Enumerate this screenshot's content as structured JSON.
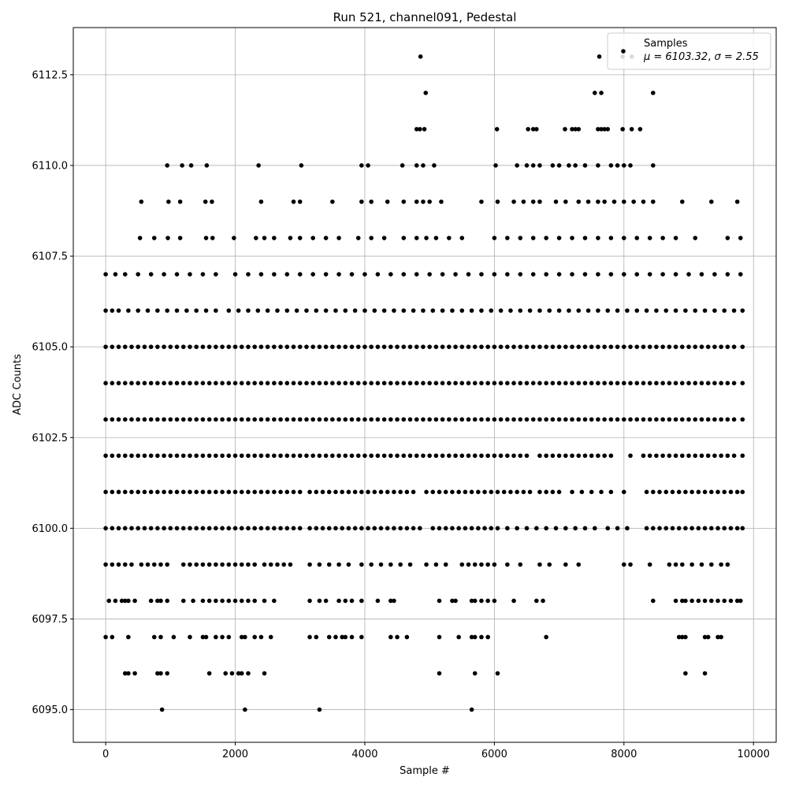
{
  "chart_data": {
    "type": "scatter",
    "title": "Run 521, channel091, Pedestal",
    "xlabel": "Sample #",
    "ylabel": "ADC Counts",
    "xlim": [
      -500,
      10350
    ],
    "ylim": [
      6094.1,
      6113.8
    ],
    "xticks": [
      0,
      2000,
      4000,
      6000,
      8000,
      10000
    ],
    "xtick_labels": [
      "0",
      "2000",
      "4000",
      "6000",
      "8000",
      "10000"
    ],
    "yticks": [
      6095.0,
      6097.5,
      6100.0,
      6102.5,
      6105.0,
      6107.5,
      6110.0,
      6112.5
    ],
    "ytick_labels": [
      "6095.0",
      "6097.5",
      "6100.0",
      "6102.5",
      "6105.0",
      "6107.5",
      "6110.0",
      "6112.5"
    ],
    "grid": true,
    "legend": {
      "placement": "top-right",
      "series_name": "Samples",
      "stat_mu_label": "μ = 6103.32",
      "stat_sigma_label": "σ = 2.55"
    },
    "marker_color": "#000000",
    "levels": [
      {
        "y": 6113,
        "x": [
          4860,
          7620,
          7980,
          8120
        ]
      },
      {
        "y": 6112,
        "x": [
          4940,
          7550,
          7650,
          8450
        ]
      },
      {
        "y": 6111,
        "x": [
          4800,
          4850,
          4920,
          6040,
          6520,
          6600,
          6650,
          7090,
          7200,
          7250,
          7300,
          7600,
          7650,
          7700,
          7750,
          7980,
          8120,
          8250
        ]
      },
      {
        "y": 6110,
        "x": [
          950,
          1180,
          1320,
          1560,
          2360,
          3020,
          3950,
          4050,
          4580,
          4800,
          4900,
          5070,
          6020,
          6350,
          6500,
          6600,
          6700,
          6900,
          7000,
          7150,
          7250,
          7400,
          7600,
          7800,
          7900,
          8000,
          8100,
          8450
        ]
      },
      {
        "y": 6109,
        "x": [
          550,
          970,
          1150,
          1540,
          1640,
          2400,
          2900,
          3000,
          3500,
          3950,
          4100,
          4350,
          4600,
          4800,
          4900,
          5000,
          5180,
          5800,
          6050,
          6300,
          6450,
          6600,
          6700,
          6950,
          7100,
          7300,
          7450,
          7600,
          7700,
          7850,
          8000,
          8150,
          8300,
          8450,
          8900,
          9350,
          9750
        ]
      },
      {
        "y": 6108,
        "x": [
          530,
          750,
          960,
          1150,
          1550,
          1650,
          1980,
          2320,
          2450,
          2600,
          2850,
          3000,
          3200,
          3400,
          3600,
          3900,
          4100,
          4300,
          4600,
          4800,
          4950,
          5100,
          5300,
          5500,
          6000,
          6200,
          6400,
          6600,
          6800,
          7000,
          7200,
          7400,
          7600,
          7800,
          8000,
          8200,
          8400,
          8600,
          8800,
          9100,
          9600,
          9800
        ]
      },
      {
        "y": 6107,
        "x": [
          0,
          150,
          300,
          500,
          700,
          900,
          1100,
          1300,
          1500,
          1700,
          2000,
          2200,
          2400,
          2600,
          2800,
          3000,
          3200,
          3400,
          3600,
          3800,
          4000,
          4200,
          4400,
          4600,
          4800,
          5000,
          5200,
          5400,
          5600,
          5800,
          6000,
          6200,
          6400,
          6600,
          6800,
          7000,
          7200,
          7400,
          7600,
          7800,
          8000,
          8200,
          8400,
          8600,
          8800,
          9000,
          9200,
          9400,
          9600,
          9800
        ]
      },
      {
        "y": 6106,
        "x": [
          0,
          100,
          200,
          350,
          500,
          650,
          800,
          950,
          1100,
          1250,
          1400,
          1550,
          1700,
          1900,
          2050,
          2200,
          2350,
          2500,
          2650,
          2800,
          2950,
          3100,
          3250,
          3400,
          3550,
          3700,
          3850,
          4000,
          4150,
          4300,
          4450,
          4600,
          4750,
          4900,
          5050,
          5200,
          5350,
          5500,
          5650,
          5800,
          5950,
          6100,
          6250,
          6400,
          6550,
          6700,
          6850,
          7000,
          7150,
          7300,
          7450,
          7600,
          7750,
          7900,
          8050,
          8200,
          8350,
          8500,
          8650,
          8800,
          8950,
          9100,
          9250,
          9400,
          9550,
          9700,
          9830
        ]
      },
      {
        "y": 6105,
        "x": [
          0,
          100,
          200,
          300,
          400,
          500,
          600,
          700,
          800,
          900,
          1000,
          1100,
          1200,
          1300,
          1400,
          1500,
          1600,
          1700,
          1800,
          1900,
          2000,
          2100,
          2200,
          2300,
          2400,
          2500,
          2600,
          2700,
          2800,
          2900,
          3000,
          3100,
          3200,
          3300,
          3400,
          3500,
          3600,
          3700,
          3800,
          3900,
          4000,
          4100,
          4200,
          4300,
          4400,
          4500,
          4600,
          4700,
          4800,
          4900,
          5000,
          5100,
          5200,
          5300,
          5400,
          5500,
          5600,
          5700,
          5800,
          5900,
          6000,
          6100,
          6200,
          6300,
          6400,
          6500,
          6600,
          6700,
          6800,
          6900,
          7000,
          7100,
          7200,
          7300,
          7400,
          7500,
          7600,
          7700,
          7800,
          7900,
          8000,
          8100,
          8200,
          8300,
          8400,
          8500,
          8600,
          8700,
          8800,
          8900,
          9000,
          9100,
          9200,
          9300,
          9400,
          9500,
          9600,
          9700,
          9830
        ]
      },
      {
        "y": 6104,
        "x": [
          0,
          100,
          200,
          300,
          400,
          500,
          600,
          700,
          800,
          900,
          1000,
          1100,
          1200,
          1300,
          1400,
          1500,
          1600,
          1700,
          1800,
          1900,
          2000,
          2100,
          2200,
          2300,
          2400,
          2500,
          2600,
          2700,
          2800,
          2900,
          3000,
          3100,
          3200,
          3300,
          3400,
          3500,
          3600,
          3700,
          3800,
          3900,
          4000,
          4100,
          4200,
          4300,
          4400,
          4500,
          4600,
          4700,
          4800,
          4900,
          5000,
          5100,
          5200,
          5300,
          5400,
          5500,
          5600,
          5700,
          5800,
          5900,
          6000,
          6100,
          6200,
          6300,
          6400,
          6500,
          6600,
          6700,
          6800,
          6900,
          7000,
          7100,
          7200,
          7300,
          7400,
          7500,
          7600,
          7700,
          7800,
          7900,
          8000,
          8100,
          8200,
          8300,
          8400,
          8500,
          8600,
          8700,
          8800,
          8900,
          9000,
          9100,
          9200,
          9300,
          9400,
          9500,
          9600,
          9700,
          9830
        ]
      },
      {
        "y": 6103,
        "x": [
          0,
          100,
          200,
          300,
          400,
          500,
          600,
          700,
          800,
          900,
          1000,
          1100,
          1200,
          1300,
          1400,
          1500,
          1600,
          1700,
          1800,
          1900,
          2000,
          2100,
          2200,
          2300,
          2400,
          2500,
          2600,
          2700,
          2800,
          2900,
          3000,
          3100,
          3200,
          3300,
          3400,
          3500,
          3600,
          3700,
          3800,
          3900,
          4000,
          4100,
          4200,
          4300,
          4400,
          4500,
          4600,
          4700,
          4800,
          4900,
          5000,
          5100,
          5200,
          5300,
          5400,
          5500,
          5600,
          5700,
          5800,
          5900,
          6000,
          6100,
          6200,
          6300,
          6400,
          6500,
          6600,
          6700,
          6800,
          6900,
          7000,
          7100,
          7200,
          7300,
          7400,
          7500,
          7600,
          7700,
          7800,
          7900,
          8000,
          8100,
          8200,
          8300,
          8400,
          8500,
          8600,
          8700,
          8800,
          8900,
          9000,
          9100,
          9200,
          9300,
          9400,
          9500,
          9600,
          9700,
          9830
        ]
      },
      {
        "y": 6102,
        "x": [
          0,
          100,
          200,
          300,
          400,
          500,
          600,
          700,
          800,
          900,
          1000,
          1100,
          1200,
          1300,
          1400,
          1500,
          1600,
          1700,
          1800,
          1900,
          2000,
          2100,
          2200,
          2300,
          2400,
          2500,
          2600,
          2700,
          2800,
          2900,
          3000,
          3100,
          3200,
          3300,
          3400,
          3500,
          3600,
          3700,
          3800,
          3900,
          4000,
          4100,
          4200,
          4300,
          4400,
          4500,
          4600,
          4700,
          4800,
          4900,
          5000,
          5100,
          5200,
          5300,
          5400,
          5500,
          5600,
          5700,
          5800,
          5900,
          6000,
          6100,
          6200,
          6300,
          6400,
          6500,
          6700,
          6800,
          6900,
          7000,
          7100,
          7200,
          7300,
          7400,
          7500,
          7600,
          7700,
          7800,
          8100,
          8300,
          8400,
          8500,
          8600,
          8700,
          8800,
          8900,
          9000,
          9100,
          9200,
          9300,
          9400,
          9500,
          9600,
          9700,
          9830
        ]
      },
      {
        "y": 6101,
        "x": [
          0,
          100,
          200,
          300,
          400,
          500,
          600,
          700,
          800,
          900,
          1000,
          1100,
          1200,
          1300,
          1400,
          1500,
          1600,
          1700,
          1800,
          1900,
          2000,
          2100,
          2200,
          2300,
          2400,
          2500,
          2600,
          2700,
          2800,
          2900,
          3000,
          3150,
          3250,
          3350,
          3450,
          3550,
          3650,
          3750,
          3850,
          3950,
          4050,
          4150,
          4250,
          4350,
          4450,
          4550,
          4650,
          4750,
          4950,
          5050,
          5150,
          5250,
          5350,
          5450,
          5550,
          5650,
          5750,
          5850,
          5950,
          6050,
          6150,
          6250,
          6350,
          6450,
          6550,
          6700,
          6800,
          6900,
          7000,
          7200,
          7350,
          7500,
          7650,
          7800,
          8000,
          8350,
          8450,
          8550,
          8650,
          8750,
          8850,
          8950,
          9050,
          9150,
          9250,
          9350,
          9450,
          9550,
          9650,
          9750,
          9830
        ]
      },
      {
        "y": 6100,
        "x": [
          0,
          100,
          200,
          300,
          400,
          500,
          600,
          700,
          800,
          900,
          1000,
          1100,
          1200,
          1300,
          1400,
          1500,
          1600,
          1700,
          1800,
          1900,
          2000,
          2100,
          2200,
          2300,
          2400,
          2500,
          2600,
          2700,
          2800,
          2900,
          3000,
          3150,
          3250,
          3350,
          3450,
          3550,
          3650,
          3750,
          3850,
          3950,
          4050,
          4150,
          4250,
          4350,
          4450,
          4550,
          4650,
          4750,
          4850,
          5050,
          5150,
          5250,
          5350,
          5450,
          5550,
          5650,
          5750,
          5850,
          5950,
          6050,
          6200,
          6350,
          6500,
          6650,
          6800,
          6950,
          7100,
          7250,
          7400,
          7550,
          7750,
          7900,
          8050,
          8350,
          8450,
          8550,
          8650,
          8750,
          8850,
          8950,
          9050,
          9150,
          9250,
          9350,
          9450,
          9550,
          9650,
          9750,
          9830
        ]
      },
      {
        "y": 6099,
        "x": [
          0,
          100,
          200,
          300,
          400,
          550,
          650,
          750,
          850,
          950,
          1200,
          1300,
          1400,
          1500,
          1600,
          1700,
          1800,
          1900,
          2000,
          2100,
          2200,
          2300,
          2450,
          2550,
          2650,
          2750,
          2850,
          3150,
          3300,
          3450,
          3600,
          3750,
          3950,
          4100,
          4250,
          4400,
          4550,
          4700,
          4950,
          5100,
          5250,
          5500,
          5600,
          5700,
          5800,
          5900,
          6000,
          6200,
          6400,
          6700,
          6850,
          7100,
          7300,
          8000,
          8100,
          8400,
          8700,
          8800,
          8900,
          9050,
          9200,
          9350,
          9500,
          9600
        ]
      },
      {
        "y": 6098,
        "x": [
          50,
          150,
          250,
          300,
          350,
          450,
          700,
          800,
          850,
          950,
          1200,
          1350,
          1500,
          1600,
          1700,
          1800,
          1900,
          2000,
          2100,
          2200,
          2300,
          2450,
          2600,
          3150,
          3300,
          3400,
          3600,
          3700,
          3800,
          3950,
          4200,
          4400,
          4450,
          5150,
          5350,
          5400,
          5650,
          5700,
          5800,
          5900,
          6000,
          6300,
          6650,
          6750,
          8450,
          8800,
          8900,
          8950,
          9050,
          9150,
          9250,
          9350,
          9450,
          9550,
          9650,
          9750,
          9800
        ]
      },
      {
        "y": 6097,
        "x": [
          0,
          100,
          350,
          750,
          850,
          1050,
          1300,
          1500,
          1550,
          1700,
          1800,
          1900,
          2100,
          2150,
          2300,
          2400,
          2550,
          3150,
          3250,
          3450,
          3550,
          3650,
          3700,
          3800,
          3950,
          4400,
          4500,
          4650,
          5150,
          5450,
          5650,
          5700,
          5800,
          5900,
          6800,
          8850,
          8900,
          8950,
          9250,
          9300,
          9450,
          9500
        ]
      },
      {
        "y": 6096,
        "x": [
          300,
          350,
          450,
          800,
          850,
          950,
          1600,
          1850,
          1950,
          2050,
          2100,
          2200,
          2450,
          5150,
          5700,
          6050,
          8950,
          9250
        ]
      },
      {
        "y": 6095,
        "x": [
          870,
          2150,
          3300,
          5650
        ]
      }
    ]
  }
}
